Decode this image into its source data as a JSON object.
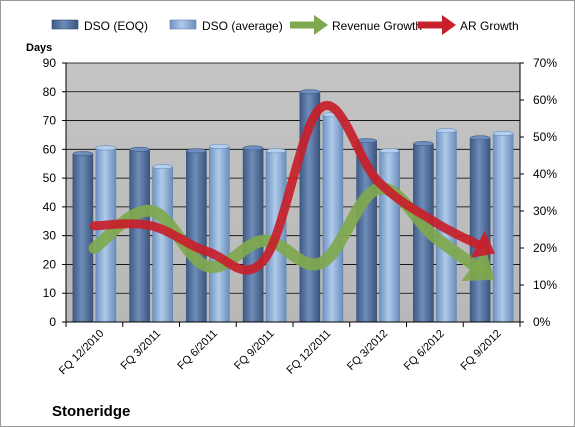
{
  "chart_data": {
    "type": "bar",
    "title": "Stoneridge",
    "ylabel": "Days",
    "ylabel_right": "",
    "ylim": [
      0,
      90
    ],
    "yticks": [
      0,
      10,
      20,
      30,
      40,
      50,
      60,
      70,
      80,
      90
    ],
    "y2lim": [
      0,
      70
    ],
    "y2ticks": [
      "0%",
      "10%",
      "20%",
      "30%",
      "40%",
      "50%",
      "60%",
      "70%"
    ],
    "categories": [
      "FQ 12/2010",
      "FQ 3/2011",
      "FQ 6/2011",
      "FQ 9/2011",
      "FQ 12/2011",
      "FQ 3/2012",
      "FQ 6/2012",
      "FQ 9/2012"
    ],
    "series": [
      {
        "name": "DSO (EOQ)",
        "type": "bar",
        "axis": "left",
        "color": "#4F6E9D",
        "values": [
          58.5,
          60,
          59.5,
          60.5,
          80,
          63,
          62,
          64
        ]
      },
      {
        "name": "DSO (average)",
        "type": "bar",
        "axis": "left",
        "color": "#8FB3DC",
        "values": [
          60.5,
          54,
          61,
          59.5,
          72,
          59.5,
          66.5,
          65.5
        ]
      },
      {
        "name": "Revenue Growth",
        "type": "line",
        "axis": "right",
        "unit": "%",
        "color": "#7FA84E",
        "values": [
          20,
          30,
          15,
          22,
          16,
          36,
          23,
          12
        ]
      },
      {
        "name": "AR Growth",
        "type": "line",
        "axis": "right",
        "unit": "%",
        "color": "#C8202A",
        "values": [
          26,
          26,
          19,
          17,
          58,
          38,
          27,
          19
        ]
      }
    ],
    "legend_position": "top",
    "grid": true,
    "plot_background": "#BFBFBF"
  }
}
